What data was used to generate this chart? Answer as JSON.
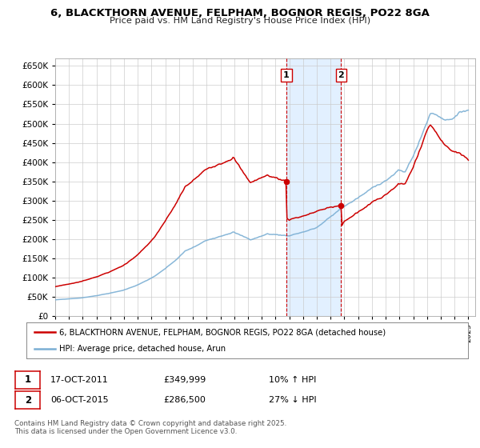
{
  "title_line1": "6, BLACKTHORN AVENUE, FELPHAM, BOGNOR REGIS, PO22 8GA",
  "title_line2": "Price paid vs. HM Land Registry's House Price Index (HPI)",
  "legend_label1": "6, BLACKTHORN AVENUE, FELPHAM, BOGNOR REGIS, PO22 8GA (detached house)",
  "legend_label2": "HPI: Average price, detached house, Arun",
  "red_color": "#cc0000",
  "blue_color": "#7bafd4",
  "grid_color": "#cccccc",
  "shade_color": "#ddeeff",
  "background_color": "#ffffff",
  "ylim": [
    0,
    670000
  ],
  "ytick_step": 50000,
  "event1_date_num": 2011.79,
  "event1_price": 349999,
  "event2_date_num": 2015.76,
  "event2_price": 286500,
  "footer": "Contains HM Land Registry data © Crown copyright and database right 2025.\nThis data is licensed under the Open Government Licence v3.0.",
  "xmin": 1995.0,
  "xmax": 2025.5
}
